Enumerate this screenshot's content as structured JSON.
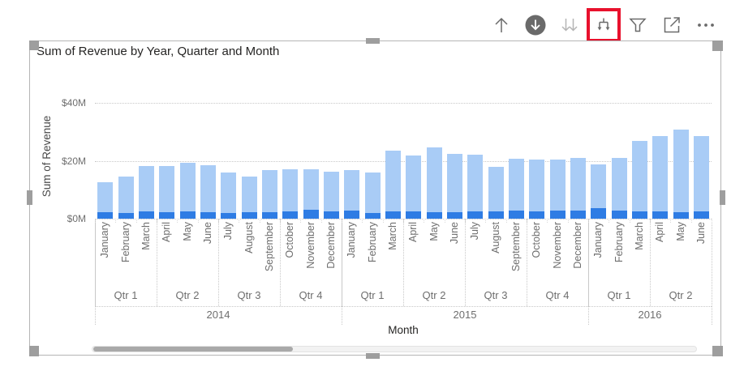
{
  "toolbar": {
    "icons": [
      {
        "name": "drill-up"
      },
      {
        "name": "drill-down"
      },
      {
        "name": "go-to-next-level"
      },
      {
        "name": "expand-all-down-one-level",
        "highlighted": true
      },
      {
        "name": "filter"
      },
      {
        "name": "focus-mode"
      },
      {
        "name": "more-options"
      }
    ],
    "highlight_color": "#e8112d",
    "icon_color": "#6a6a6a",
    "disabled_icon_color": "#b5b5b5"
  },
  "visual": {
    "selected": true,
    "scrollbar": {
      "orientation": "horizontal",
      "thumb_start_pct": 0,
      "thumb_size_pct": 33
    }
  },
  "chart_data": {
    "type": "bar",
    "stacked": true,
    "title": "Sum of Revenue by Year, Quarter and Month",
    "xlabel": "Month",
    "ylabel": "Sum of Revenue",
    "unit": "$M",
    "ylim": [
      0,
      45
    ],
    "y_ticks": [
      {
        "label": "$0M",
        "value": 0
      },
      {
        "label": "$20M",
        "value": 20
      },
      {
        "label": "$40M",
        "value": 40
      }
    ],
    "grid": "dotted-horizontal",
    "legend": "none",
    "colors": {
      "light_bar": "#a9ccf6",
      "dark_bar": "#2e7ce4"
    },
    "hierarchy": [
      {
        "year": "2014",
        "quarters": [
          {
            "label": "Qtr 1",
            "months": [
              "January",
              "February",
              "March"
            ]
          },
          {
            "label": "Qtr 2",
            "months": [
              "April",
              "May",
              "June"
            ]
          },
          {
            "label": "Qtr 3",
            "months": [
              "July",
              "August",
              "September"
            ]
          },
          {
            "label": "Qtr 4",
            "months": [
              "October",
              "November",
              "December"
            ]
          }
        ]
      },
      {
        "year": "2015",
        "quarters": [
          {
            "label": "Qtr 1",
            "months": [
              "January",
              "February",
              "March"
            ]
          },
          {
            "label": "Qtr 2",
            "months": [
              "April",
              "May",
              "June"
            ]
          },
          {
            "label": "Qtr 3",
            "months": [
              "July",
              "August",
              "September"
            ]
          },
          {
            "label": "Qtr 4",
            "months": [
              "October",
              "November",
              "December"
            ]
          }
        ]
      },
      {
        "year": "2016",
        "quarters": [
          {
            "label": "Qtr 1",
            "months": [
              "January",
              "February",
              "March"
            ]
          },
          {
            "label": "Qtr 2",
            "months": [
              "April",
              "May",
              "June"
            ]
          }
        ]
      }
    ],
    "series": [
      {
        "name": "revenue-dark-segment",
        "color": "#2e7ce4",
        "values": [
          2.3,
          2.0,
          2.5,
          2.3,
          2.4,
          2.1,
          2.0,
          2.1,
          2.3,
          2.5,
          3.0,
          2.6,
          2.8,
          1.9,
          2.4,
          2.5,
          2.3,
          2.2,
          2.4,
          2.4,
          2.9,
          2.6,
          2.7,
          2.7,
          3.5,
          2.7,
          2.4,
          2.5,
          2.3,
          2.6
        ]
      },
      {
        "name": "revenue-light-segment",
        "color": "#a9ccf6",
        "values": [
          10.2,
          12.6,
          15.8,
          16.0,
          16.8,
          16.4,
          14.0,
          12.4,
          14.5,
          14.5,
          14.0,
          13.7,
          14.0,
          14.0,
          21.0,
          19.2,
          22.2,
          20.3,
          19.6,
          15.5,
          17.7,
          17.8,
          17.6,
          18.3,
          15.2,
          18.3,
          24.4,
          25.9,
          28.6,
          25.8
        ]
      }
    ],
    "totals": [
      12.5,
      14.6,
      18.3,
      18.3,
      19.2,
      18.5,
      16.0,
      14.5,
      16.8,
      17.0,
      17.0,
      16.3,
      16.8,
      15.9,
      23.4,
      21.7,
      24.5,
      22.5,
      22.0,
      17.9,
      20.6,
      20.4,
      20.3,
      21.0,
      18.7,
      21.0,
      26.8,
      28.4,
      30.9,
      28.4
    ]
  }
}
